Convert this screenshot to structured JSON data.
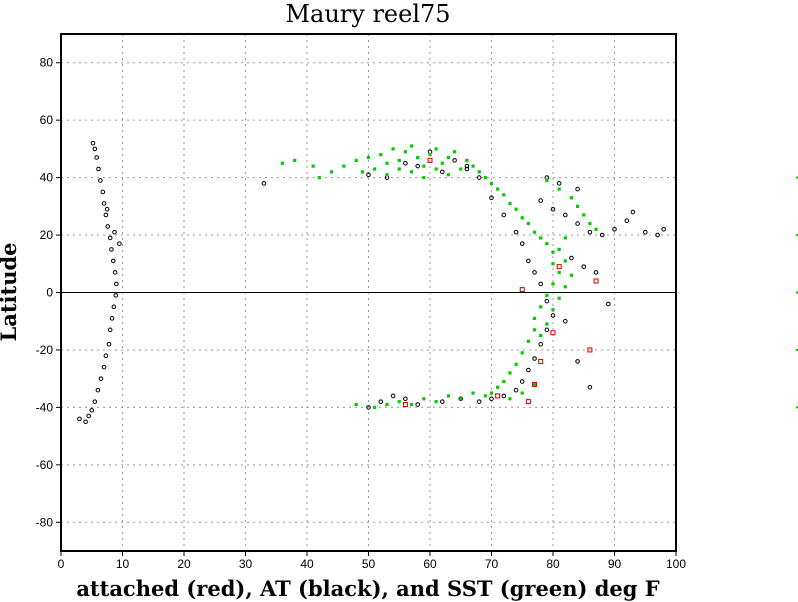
{
  "chart_data": {
    "type": "scatter",
    "title": "Maury reel75",
    "xlabel": "attached (red), AT (black), and SST (green) deg F",
    "ylabel": "Latitude",
    "xlim": [
      0,
      100
    ],
    "ylim": [
      -90,
      90
    ],
    "xticks": [
      0,
      10,
      20,
      30,
      40,
      50,
      60,
      70,
      80,
      90,
      100
    ],
    "yticks": [
      -80,
      -60,
      -40,
      -20,
      0,
      20,
      40,
      60,
      80
    ],
    "grid": true,
    "zero_line": 0,
    "colors": {
      "attached": "#cc0000",
      "at": "#000000",
      "sst": "#00cc00"
    },
    "series": [
      {
        "color": "#000000",
        "marker": "circle-open",
        "points": [
          [
            3,
            -44
          ],
          [
            4,
            -45
          ],
          [
            4.5,
            -43
          ],
          [
            5,
            -41
          ],
          [
            5.5,
            -38
          ],
          [
            6,
            -34
          ],
          [
            6.5,
            -30
          ],
          [
            7,
            -26
          ],
          [
            7.3,
            -22
          ],
          [
            7.8,
            -18
          ],
          [
            8,
            -13
          ],
          [
            8.3,
            -9
          ],
          [
            8.6,
            -5
          ],
          [
            8.9,
            -1
          ],
          [
            9,
            3
          ],
          [
            8.8,
            7
          ],
          [
            8.5,
            11
          ],
          [
            8.2,
            15
          ],
          [
            8,
            19
          ],
          [
            7.6,
            23
          ],
          [
            7.3,
            27
          ],
          [
            7,
            31
          ],
          [
            6.8,
            35
          ],
          [
            6.4,
            39
          ],
          [
            6.1,
            43
          ],
          [
            5.8,
            47
          ],
          [
            5.5,
            50
          ],
          [
            5.2,
            52
          ],
          [
            9.5,
            17
          ],
          [
            7.5,
            29
          ],
          [
            8.7,
            21
          ],
          [
            33,
            38
          ],
          [
            50,
            41
          ],
          [
            53,
            40
          ],
          [
            56,
            45
          ],
          [
            60,
            49
          ],
          [
            64,
            46
          ],
          [
            66,
            44
          ],
          [
            68,
            40
          ],
          [
            70,
            33
          ],
          [
            72,
            27
          ],
          [
            74,
            21
          ],
          [
            75,
            17
          ],
          [
            76,
            11
          ],
          [
            77,
            7
          ],
          [
            78,
            3
          ],
          [
            79,
            -3
          ],
          [
            80,
            -8
          ],
          [
            79,
            -13
          ],
          [
            78,
            -18
          ],
          [
            77,
            -23
          ],
          [
            76,
            -27
          ],
          [
            75,
            -31
          ],
          [
            74,
            -34
          ],
          [
            72,
            -36
          ],
          [
            70,
            -37
          ],
          [
            68,
            -38
          ],
          [
            65,
            -37
          ],
          [
            62,
            -38
          ],
          [
            58,
            -39
          ],
          [
            56,
            -37
          ],
          [
            54,
            -36
          ],
          [
            52,
            -38
          ],
          [
            50,
            -40
          ],
          [
            78,
            32
          ],
          [
            80,
            29
          ],
          [
            82,
            27
          ],
          [
            84,
            24
          ],
          [
            86,
            21
          ],
          [
            88,
            20
          ],
          [
            90,
            22
          ],
          [
            92,
            25
          ],
          [
            93,
            28
          ],
          [
            95,
            21
          ],
          [
            97,
            20
          ],
          [
            98,
            22
          ],
          [
            85,
            9
          ],
          [
            87,
            7
          ],
          [
            89,
            -4
          ],
          [
            86,
            -33
          ],
          [
            84,
            -24
          ],
          [
            82,
            -10
          ],
          [
            83,
            12
          ],
          [
            81,
            38
          ],
          [
            79,
            40
          ],
          [
            84,
            36
          ],
          [
            62,
            42
          ],
          [
            58,
            44
          ],
          [
            66,
            43
          ]
        ]
      },
      {
        "color": "#00cc00",
        "marker": "square-filled",
        "points": [
          [
            36,
            45
          ],
          [
            38,
            46
          ],
          [
            41,
            44
          ],
          [
            42,
            40
          ],
          [
            44,
            42
          ],
          [
            46,
            44
          ],
          [
            48,
            46
          ],
          [
            49,
            42
          ],
          [
            50,
            47
          ],
          [
            51,
            43
          ],
          [
            52,
            48
          ],
          [
            53,
            45
          ],
          [
            54,
            50
          ],
          [
            55,
            46
          ],
          [
            56,
            49
          ],
          [
            57,
            51
          ],
          [
            58,
            47
          ],
          [
            59,
            44
          ],
          [
            60,
            48
          ],
          [
            61,
            50
          ],
          [
            62,
            45
          ],
          [
            63,
            47
          ],
          [
            64,
            49
          ],
          [
            65,
            43
          ],
          [
            66,
            46
          ],
          [
            67,
            44
          ],
          [
            68,
            42
          ],
          [
            69,
            40
          ],
          [
            70,
            38
          ],
          [
            71,
            36
          ],
          [
            72,
            34
          ],
          [
            73,
            31
          ],
          [
            74,
            29
          ],
          [
            75,
            26
          ],
          [
            76,
            24
          ],
          [
            77,
            21
          ],
          [
            78,
            19
          ],
          [
            79,
            17
          ],
          [
            80,
            14
          ],
          [
            80,
            10
          ],
          [
            81,
            7
          ],
          [
            80,
            3
          ],
          [
            79,
            -1
          ],
          [
            78,
            -5
          ],
          [
            77,
            -9
          ],
          [
            77,
            -13
          ],
          [
            76,
            -17
          ],
          [
            75,
            -21
          ],
          [
            74,
            -25
          ],
          [
            73,
            -28
          ],
          [
            72,
            -31
          ],
          [
            71,
            -33
          ],
          [
            70,
            -35
          ],
          [
            69,
            -36
          ],
          [
            67,
            -35
          ],
          [
            65,
            -37
          ],
          [
            63,
            -36
          ],
          [
            61,
            -38
          ],
          [
            59,
            -37
          ],
          [
            57,
            -39
          ],
          [
            55,
            -38
          ],
          [
            53,
            -39
          ],
          [
            51,
            -40
          ],
          [
            48,
            -39
          ],
          [
            79,
            39
          ],
          [
            81,
            36
          ],
          [
            83,
            33
          ],
          [
            84,
            30
          ],
          [
            85,
            27
          ],
          [
            86,
            24
          ],
          [
            87,
            22
          ],
          [
            82,
            19
          ],
          [
            81,
            15
          ],
          [
            82,
            11
          ],
          [
            83,
            6
          ],
          [
            82,
            2
          ],
          [
            81,
            -2
          ],
          [
            80,
            -6
          ],
          [
            79,
            -11
          ],
          [
            78,
            -15
          ],
          [
            57,
            42
          ],
          [
            59,
            40
          ],
          [
            61,
            43
          ],
          [
            63,
            41
          ],
          [
            55,
            43
          ],
          [
            53,
            41
          ],
          [
            77,
            -32
          ],
          [
            75,
            -35
          ],
          [
            73,
            -37
          ]
        ]
      },
      {
        "color": "#cc0000",
        "marker": "square-open",
        "points": [
          [
            87,
            4
          ],
          [
            86,
            -20
          ],
          [
            81,
            9
          ],
          [
            80,
            -14
          ],
          [
            77,
            -32
          ],
          [
            75,
            1
          ],
          [
            76,
            -38
          ],
          [
            78,
            -24
          ],
          [
            60,
            46
          ],
          [
            56,
            -39
          ],
          [
            71,
            -36
          ]
        ]
      }
    ]
  }
}
